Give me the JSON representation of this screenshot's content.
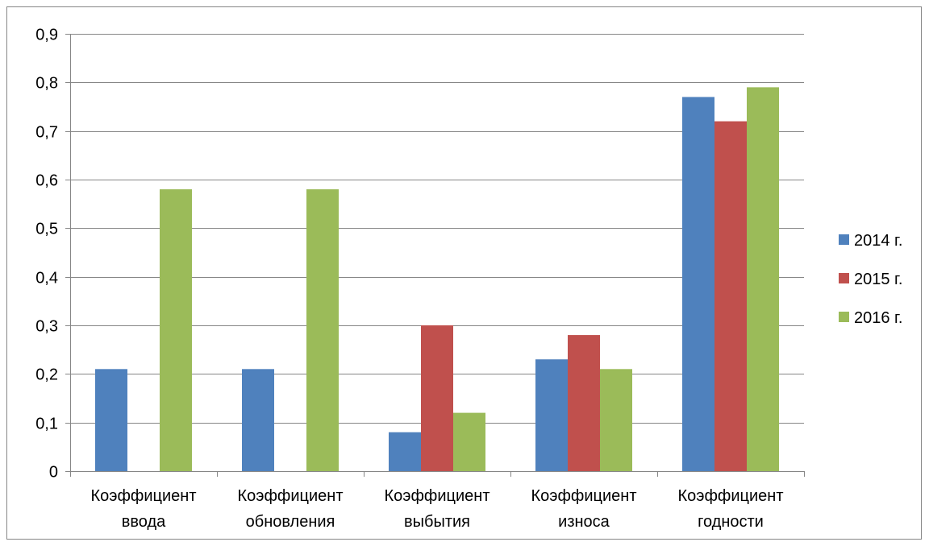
{
  "chart_data": {
    "type": "bar",
    "categories": [
      [
        "Коэффициент",
        "ввода"
      ],
      [
        "Коэффициент",
        "обновления"
      ],
      [
        "Коэффициент",
        "выбытия"
      ],
      [
        "Коэффициент",
        "износа"
      ],
      [
        "Коэффициент",
        "годности"
      ]
    ],
    "series": [
      {
        "name": "2014 г.",
        "color": "#4F81BD",
        "values": [
          0.21,
          0.21,
          0.08,
          0.23,
          0.77
        ]
      },
      {
        "name": "2015 г.",
        "color": "#C0504D",
        "values": [
          0,
          0,
          0.3,
          0.28,
          0.72
        ]
      },
      {
        "name": "2016 г.",
        "color": "#9BBB59",
        "values": [
          0.58,
          0.58,
          0.12,
          0.21,
          0.79
        ]
      }
    ],
    "yticks": [
      "0",
      "0,1",
      "0,2",
      "0,3",
      "0,4",
      "0,5",
      "0,6",
      "0,7",
      "0,8",
      "0,9"
    ],
    "ylim": [
      0,
      0.9
    ],
    "grid": true,
    "legend_position": "right"
  }
}
